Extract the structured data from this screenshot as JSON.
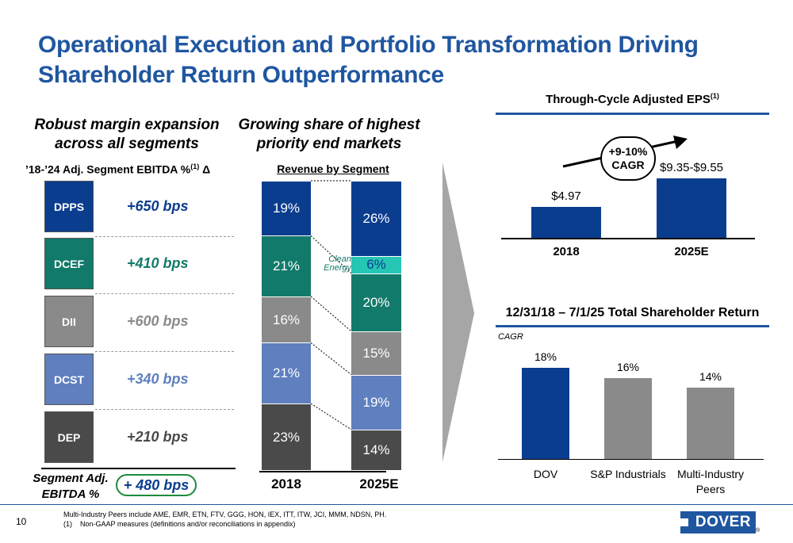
{
  "title": "Operational Execution and Portfolio Transformation Driving Shareholder Return Outperformance",
  "colors": {
    "dpps": "#0b3d8f",
    "dcef": "#127a6a",
    "dii": "#8a8a8a",
    "dcst": "#5f7fbf",
    "dep": "#4a4a4a",
    "clean_energy": "#26c6b4",
    "accent_blue": "#1f56a0",
    "bar_gray": "#8a8a8a"
  },
  "margin_panel": {
    "heading": "Robust margin expansion across all segments",
    "subheading": "’18-’24 Adj. Segment EBITDA %",
    "subheading_sup": "(1)",
    "subheading_suffix": " Δ",
    "segments": [
      {
        "name": "DPPS",
        "value": "+650 bps",
        "color": "#0b3d8f"
      },
      {
        "name": "DCEF",
        "value": "+410 bps",
        "color": "#127a6a"
      },
      {
        "name": "DII",
        "value": "+600 bps",
        "color": "#8a8a8a"
      },
      {
        "name": "DCST",
        "value": "+340 bps",
        "color": "#5f7fbf"
      },
      {
        "name": "DEP",
        "value": "+210 bps",
        "color": "#4a4a4a"
      }
    ],
    "total_label": "Segment Adj. EBITDA %",
    "total_value": "+ 480 bps"
  },
  "chart_data": [
    {
      "type": "bar",
      "title": "Revenue by Segment",
      "subtitle": "Growing share of highest priority end markets",
      "stacked": true,
      "categories": [
        "2018",
        "2025E"
      ],
      "series": [
        {
          "name": "DEP",
          "values": [
            23,
            14
          ],
          "labels": [
            "23%",
            "14%"
          ],
          "color": "#4a4a4a"
        },
        {
          "name": "DCST",
          "values": [
            21,
            19
          ],
          "labels": [
            "21%",
            "19%"
          ],
          "color": "#5f7fbf"
        },
        {
          "name": "DII",
          "values": [
            16,
            15
          ],
          "labels": [
            "16%",
            "15%"
          ],
          "color": "#8a8a8a"
        },
        {
          "name": "DCEF",
          "values": [
            21,
            20
          ],
          "labels": [
            "21%",
            "20%"
          ],
          "color": "#127a6a"
        },
        {
          "name": "Clean Energy",
          "values": [
            0,
            6
          ],
          "labels": [
            "",
            "6%"
          ],
          "color": "#26c6b4"
        },
        {
          "name": "DPPS",
          "values": [
            19,
            26
          ],
          "labels": [
            "19%",
            "26%"
          ],
          "color": "#0b3d8f"
        }
      ],
      "annotation": "Clean Energy"
    },
    {
      "type": "bar",
      "title": "Through-Cycle Adjusted EPS",
      "title_sup": "(1)",
      "categories": [
        "2018",
        "2025E"
      ],
      "values": [
        4.97,
        9.45
      ],
      "labels": [
        "$4.97",
        "$9.35-$9.55"
      ],
      "range_2025E": [
        9.35,
        9.55
      ],
      "callout": "+9-10% CAGR",
      "color": "#0b3d8f"
    },
    {
      "type": "bar",
      "title": "12/31/18 – 7/1/25 Total Shareholder Return",
      "ylabel": "CAGR",
      "categories": [
        "DOV",
        "S&P Industrials",
        "Multi-Industry Peers"
      ],
      "values": [
        18,
        16,
        14
      ],
      "labels": [
        "18%",
        "16%",
        "14%"
      ],
      "colors": [
        "#0b3d8f",
        "#8a8a8a",
        "#8a8a8a"
      ]
    }
  ],
  "footer": {
    "page_number": "10",
    "note1": "Multi-Industry Peers include AME, EMR, ETN, FTV, GGG, HON, IEX, ITT, ITW, JCI, MMM, NDSN, PH.",
    "note2": "(1)    Non-GAAP measures (definitions and/or reconciliations in appendix)",
    "logo": "DOVER",
    "logo_mark": "®"
  }
}
